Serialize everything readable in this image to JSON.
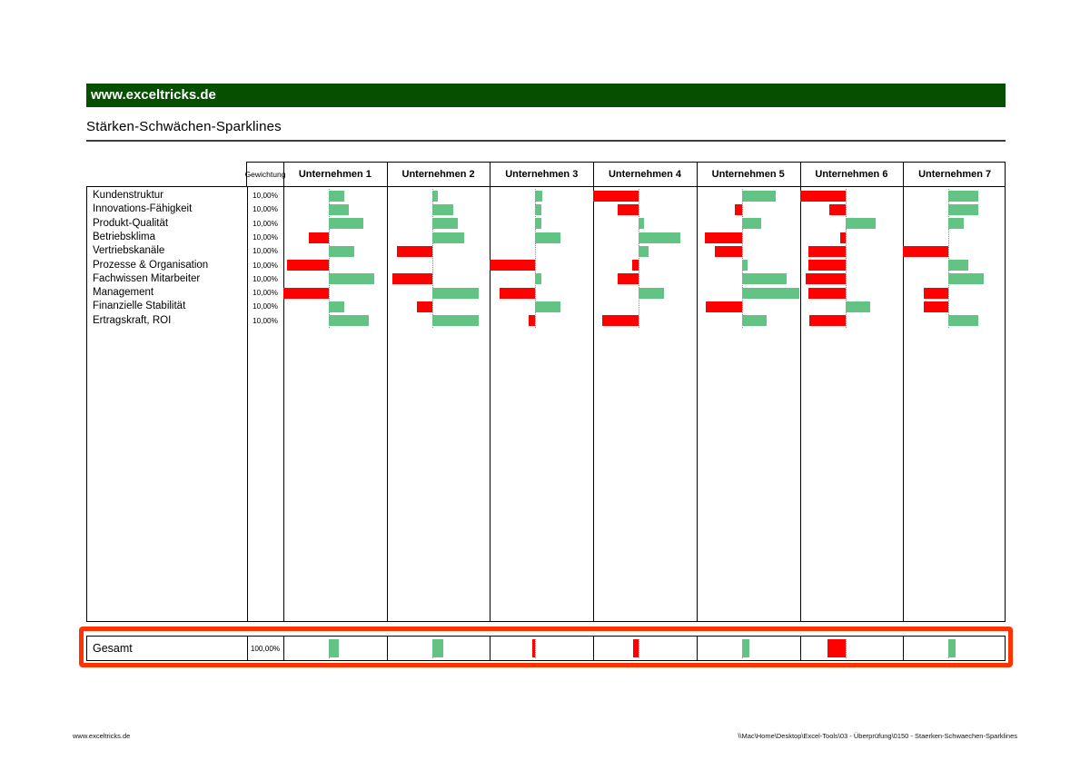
{
  "brand": {
    "text": "www.exceltricks.de",
    "bg_color": "#064e00"
  },
  "title": "Stärken-Schwächen-Sparklines",
  "table": {
    "weight_header": "Gewichtung"
  },
  "chart_data": {
    "type": "bar",
    "subtype": "diverging-horizontal-sparklines",
    "title": "Stärken-Schwächen-Sparklines",
    "categories": [
      "Kundenstruktur",
      "Innovations-Fähigkeit",
      "Produkt-Qualität",
      "Betriebsklima",
      "Vertriebskanäle",
      "Prozesse & Organisation",
      "Fachwissen Mitarbeiter",
      "Management",
      "Finanzielle Stabilität",
      "Ertragskraft, ROI"
    ],
    "weights": [
      "10,00%",
      "10,00%",
      "10,00%",
      "10,00%",
      "10,00%",
      "10,00%",
      "10,00%",
      "10,00%",
      "10,00%",
      "10,00%"
    ],
    "series": [
      {
        "name": "Unternehmen 1",
        "values": [
          27,
          35,
          61,
          -44,
          44,
          -93,
          79,
          -100,
          27,
          70
        ]
      },
      {
        "name": "Unternehmen 2",
        "values": [
          10,
          37,
          45,
          56,
          -77,
          0,
          -88,
          82,
          -33,
          81
        ]
      },
      {
        "name": "Unternehmen 3",
        "values": [
          12,
          11,
          11,
          44,
          0,
          -100,
          11,
          -78,
          44,
          -15
        ]
      },
      {
        "name": "Unternehmen 4",
        "values": [
          -100,
          -47,
          10,
          73,
          17,
          -14,
          -47,
          44,
          0,
          -80
        ]
      },
      {
        "name": "Unternehmen 5",
        "values": [
          60,
          -16,
          34,
          -82,
          -60,
          9,
          78,
          100,
          -80,
          44
        ]
      },
      {
        "name": "Unternehmen 6",
        "values": [
          -100,
          -35,
          53,
          -12,
          -82,
          -82,
          -88,
          -82,
          44,
          -80
        ]
      },
      {
        "name": "Unternehmen 7",
        "values": [
          52,
          52,
          26,
          0,
          -100,
          35,
          62,
          -55,
          -55,
          52
        ]
      }
    ],
    "totals": {
      "label": "Gesamt",
      "weight": "100,00%",
      "values": [
        17,
        19,
        -6,
        -12,
        13,
        -40,
        13
      ]
    },
    "value_note": "Signed percent of maximum bar extent read from pixels; positive = green bar right of axis, negative = red bar left of axis; vertical dotted axis sits at ~44% of each company cell width",
    "axis_frac": 0.44,
    "legend_position": "none",
    "grid": false,
    "colors": {
      "positive": "#63c384",
      "negative": "#fe0000"
    }
  },
  "footer": {
    "left": "www.exceltricks.de",
    "right": "\\\\Mac\\Home\\Desktop\\Excel-Tools\\03 - Überprüfung\\0150 - Staerken-Schwaechen-Sparklines"
  }
}
